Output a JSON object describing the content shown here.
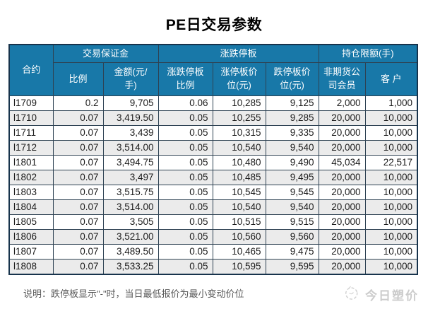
{
  "title": "PE日交易参数",
  "table": {
    "headers": {
      "contract": "合约",
      "group_margin": "交易保证金",
      "group_price_limit": "涨跌停板",
      "group_position_limit": "持仓限额(手)",
      "margin_ratio": "比例",
      "margin_amount": "金额(元/\n手)",
      "limit_ratio": "涨跌停板\n比例",
      "limit_up_price": "涨停板价\n位(元)",
      "limit_down_price": "跌停板价\n位(元)",
      "non_futures_member": "非期货公\n司会员",
      "client": "客 户"
    },
    "rows": [
      [
        "l1709",
        "0.2",
        "9,705",
        "0.06",
        "10,285",
        "9,125",
        "2,000",
        "1,000"
      ],
      [
        "l1710",
        "0.07",
        "3,419.50",
        "0.05",
        "10,255",
        "9,285",
        "20,000",
        "10,000"
      ],
      [
        "l1711",
        "0.07",
        "3,439",
        "0.05",
        "10,315",
        "9,335",
        "20,000",
        "10,000"
      ],
      [
        "l1712",
        "0.07",
        "3,514.00",
        "0.05",
        "10,540",
        "9,540",
        "20,000",
        "10,000"
      ],
      [
        "l1801",
        "0.07",
        "3,494.75",
        "0.05",
        "10,480",
        "9,490",
        "45,034",
        "22,517"
      ],
      [
        "l1802",
        "0.07",
        "3,497",
        "0.05",
        "10,485",
        "9,495",
        "20,000",
        "10,000"
      ],
      [
        "l1803",
        "0.07",
        "3,515.75",
        "0.05",
        "10,545",
        "9,545",
        "20,000",
        "10,000"
      ],
      [
        "l1804",
        "0.07",
        "3,514.00",
        "0.05",
        "10,540",
        "9,540",
        "20,000",
        "10,000"
      ],
      [
        "l1805",
        "0.07",
        "3,505",
        "0.05",
        "10,515",
        "9,515",
        "20,000",
        "10,000"
      ],
      [
        "l1806",
        "0.07",
        "3,521.00",
        "0.05",
        "10,560",
        "9,560",
        "20,000",
        "10,000"
      ],
      [
        "l1807",
        "0.07",
        "3,489.50",
        "0.05",
        "10,465",
        "9,475",
        "20,000",
        "10,000"
      ],
      [
        "l1808",
        "0.07",
        "3,533.25",
        "0.05",
        "10,595",
        "9,595",
        "20,000",
        "10,000"
      ]
    ]
  },
  "footer": {
    "note": "说明：跌停板显示\"-\"时，当日最低报价为最小变动价位"
  },
  "watermark": {
    "brand": "今日塑价",
    "logo": "sketch-circle-logo-icon"
  },
  "colors": {
    "header_bg": "#1878a8",
    "grid_line": "#2e4253",
    "outer_border": "#17334c",
    "alt_row_bg": "#ebebeb",
    "note_text": "#595959",
    "watermark_text": "#cccccc",
    "title_text": "#000000"
  }
}
